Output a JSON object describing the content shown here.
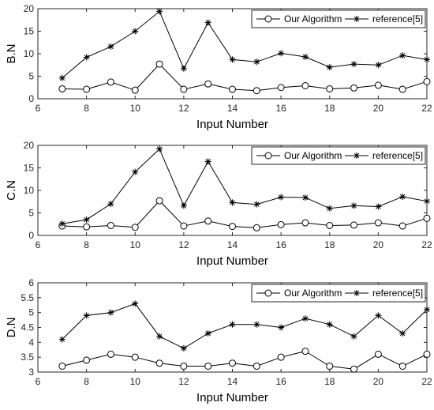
{
  "chart_data": [
    {
      "type": "line",
      "xlabel": "Input Number",
      "ylabel": "B.N",
      "xlim": [
        6,
        22
      ],
      "ylim": [
        0,
        20
      ],
      "xticks": [
        "6",
        "8",
        "10",
        "12",
        "14",
        "16",
        "18",
        "20",
        "22"
      ],
      "yticks": [
        "0",
        "5",
        "10",
        "15",
        "20"
      ],
      "x": [
        7,
        8,
        9,
        10,
        11,
        12,
        13,
        14,
        15,
        16,
        17,
        18,
        19,
        20,
        21,
        22
      ],
      "legend_position": "top-right",
      "series": [
        {
          "name": "Our Algorithm",
          "marker": "circle",
          "values": [
            2.2,
            2.1,
            3.7,
            1.9,
            7.7,
            2.1,
            3.3,
            2.1,
            1.8,
            2.5,
            2.9,
            2.2,
            2.4,
            3.0,
            2.1,
            3.8
          ]
        },
        {
          "name": "reference[5]",
          "marker": "star",
          "values": [
            4.6,
            9.2,
            11.6,
            15.0,
            19.4,
            6.7,
            16.9,
            8.7,
            8.2,
            10.1,
            9.3,
            7.0,
            7.7,
            7.5,
            9.6,
            8.7
          ]
        }
      ]
    },
    {
      "type": "line",
      "xlabel": "Input Number",
      "ylabel": "C.N",
      "xlim": [
        6,
        22
      ],
      "ylim": [
        0,
        20
      ],
      "xticks": [
        "6",
        "8",
        "10",
        "12",
        "14",
        "16",
        "18",
        "20",
        "22"
      ],
      "yticks": [
        "0",
        "5",
        "10",
        "15",
        "20"
      ],
      "x": [
        7,
        8,
        9,
        10,
        11,
        12,
        13,
        14,
        15,
        16,
        17,
        18,
        19,
        20,
        21,
        22
      ],
      "legend_position": "top-right",
      "series": [
        {
          "name": "Our Algorithm",
          "marker": "circle",
          "values": [
            2.1,
            1.9,
            2.2,
            1.8,
            7.7,
            2.1,
            3.2,
            2.0,
            1.7,
            2.4,
            2.8,
            2.2,
            2.3,
            2.8,
            2.1,
            3.8
          ]
        },
        {
          "name": "reference[5]",
          "marker": "star",
          "values": [
            2.6,
            3.5,
            7.0,
            14.1,
            19.2,
            6.6,
            16.4,
            7.3,
            6.9,
            8.5,
            8.4,
            6.0,
            6.6,
            6.4,
            8.6,
            7.6
          ]
        }
      ]
    },
    {
      "type": "line",
      "xlabel": "Input Number",
      "ylabel": "D.N",
      "xlim": [
        6,
        22
      ],
      "ylim": [
        3,
        6
      ],
      "xticks": [
        "6",
        "8",
        "10",
        "12",
        "14",
        "16",
        "18",
        "20",
        "22"
      ],
      "yticks": [
        "3",
        "3.5",
        "4",
        "4.5",
        "5",
        "5.5",
        "6"
      ],
      "x": [
        7,
        8,
        9,
        10,
        11,
        12,
        13,
        14,
        15,
        16,
        17,
        18,
        19,
        20,
        21,
        22
      ],
      "legend_position": "top-right",
      "series": [
        {
          "name": "Our Algorithm",
          "marker": "circle",
          "values": [
            3.2,
            3.4,
            3.6,
            3.5,
            3.3,
            3.2,
            3.2,
            3.3,
            3.2,
            3.5,
            3.7,
            3.2,
            3.1,
            3.6,
            3.2,
            3.6
          ]
        },
        {
          "name": "reference[5]",
          "marker": "star",
          "values": [
            4.1,
            4.9,
            5.0,
            5.3,
            4.2,
            3.8,
            4.3,
            4.6,
            4.6,
            4.5,
            4.8,
            4.6,
            4.2,
            4.9,
            4.3,
            5.1
          ]
        }
      ]
    }
  ]
}
